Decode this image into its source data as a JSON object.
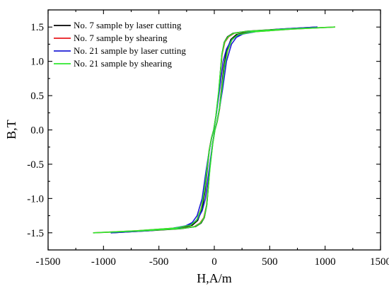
{
  "chart_data": {
    "type": "line",
    "title": "",
    "xlabel": "H,A/m",
    "ylabel": "B,T",
    "xlim": [
      -1500,
      1500
    ],
    "ylim": [
      -1.75,
      1.75
    ],
    "xticks": [
      -1500,
      -1000,
      -500,
      0,
      500,
      1000,
      1500
    ],
    "yticks": [
      -1.5,
      -1.0,
      -0.5,
      0.0,
      0.5,
      1.0,
      1.5
    ],
    "xtick_labels": [
      "-1500",
      "-1000",
      "-500",
      "0",
      "500",
      "1000",
      "1500"
    ],
    "ytick_labels": [
      "-1.5",
      "-1.0",
      "-0.5",
      "0.0",
      "0.5",
      "1.0",
      "1.5"
    ],
    "grid": false,
    "legend_position": "top-left",
    "series": [
      {
        "name": "No. 7 sample by laser cutting",
        "color": "#000000",
        "x": [
          930,
          600,
          300,
          200,
          150,
          110,
          85,
          65,
          45,
          25,
          5,
          -15,
          -40,
          -55,
          -68,
          -90,
          -120,
          -170,
          -300,
          -600,
          -930,
          -600,
          -300,
          -200,
          -150,
          -110,
          -85,
          -65,
          -45,
          -25,
          -5,
          15,
          40,
          55,
          68,
          90,
          120,
          170,
          300,
          600,
          930
        ],
        "y": [
          1.5,
          1.47,
          1.43,
          1.39,
          1.32,
          1.15,
          0.9,
          0.6,
          0.3,
          0.12,
          0.0,
          -0.2,
          -0.55,
          -0.85,
          -1.1,
          -1.28,
          -1.36,
          -1.41,
          -1.44,
          -1.47,
          -1.5,
          -1.47,
          -1.43,
          -1.39,
          -1.32,
          -1.15,
          -0.9,
          -0.6,
          -0.3,
          -0.12,
          0.0,
          0.2,
          0.55,
          0.85,
          1.1,
          1.28,
          1.36,
          1.41,
          1.44,
          1.47,
          1.5
        ]
      },
      {
        "name": "No. 7 sample by shearing",
        "color": "#e8191e",
        "x": [
          1090,
          700,
          350,
          220,
          160,
          120,
          90,
          68,
          47,
          26,
          6,
          -14,
          -40,
          -56,
          -70,
          -95,
          -130,
          -180,
          -320,
          -650,
          -1090,
          -700,
          -350,
          -220,
          -160,
          -120,
          -90,
          -68,
          -47,
          -26,
          -6,
          14,
          40,
          56,
          70,
          95,
          130,
          180,
          320,
          650,
          1090
        ],
        "y": [
          1.5,
          1.47,
          1.43,
          1.39,
          1.32,
          1.15,
          0.9,
          0.6,
          0.3,
          0.12,
          0.0,
          -0.2,
          -0.55,
          -0.85,
          -1.1,
          -1.28,
          -1.36,
          -1.41,
          -1.44,
          -1.47,
          -1.5,
          -1.47,
          -1.43,
          -1.39,
          -1.32,
          -1.15,
          -0.9,
          -0.6,
          -0.3,
          -0.12,
          0.0,
          0.2,
          0.55,
          0.85,
          1.1,
          1.28,
          1.36,
          1.41,
          1.44,
          1.47,
          1.5
        ]
      },
      {
        "name": "No. 21 sample by laser cutting",
        "color": "#1e1ed6",
        "x": [
          930,
          600,
          400,
          260,
          200,
          155,
          110,
          75,
          45,
          25,
          5,
          -15,
          -40,
          -60,
          -80,
          -110,
          -150,
          -200,
          -320,
          -600,
          -930,
          -600,
          -400,
          -260,
          -200,
          -155,
          -110,
          -75,
          -45,
          -25,
          -5,
          15,
          40,
          60,
          80,
          110,
          150,
          200,
          320,
          600,
          930
        ],
        "y": [
          1.5,
          1.47,
          1.44,
          1.4,
          1.35,
          1.25,
          1.0,
          0.6,
          0.3,
          0.12,
          0.0,
          -0.2,
          -0.5,
          -0.75,
          -1.0,
          -1.18,
          -1.3,
          -1.37,
          -1.43,
          -1.47,
          -1.5,
          -1.47,
          -1.44,
          -1.4,
          -1.35,
          -1.25,
          -1.0,
          -0.6,
          -0.3,
          -0.12,
          0.0,
          0.2,
          0.5,
          0.75,
          1.0,
          1.18,
          1.3,
          1.37,
          1.43,
          1.47,
          1.5
        ]
      },
      {
        "name": "No. 21 sample by shearing",
        "color": "#2ee82e",
        "x": [
          1090,
          700,
          350,
          215,
          160,
          118,
          90,
          68,
          46,
          25,
          6,
          -14,
          -38,
          -55,
          -68,
          -92,
          -125,
          -175,
          -310,
          -650,
          -1090,
          -700,
          -350,
          -215,
          -160,
          -118,
          -90,
          -68,
          -46,
          -25,
          -6,
          14,
          38,
          55,
          68,
          92,
          125,
          175,
          310,
          650,
          1090
        ],
        "y": [
          1.5,
          1.47,
          1.43,
          1.39,
          1.32,
          1.15,
          0.9,
          0.6,
          0.3,
          0.12,
          0.0,
          -0.2,
          -0.55,
          -0.85,
          -1.1,
          -1.28,
          -1.36,
          -1.41,
          -1.44,
          -1.47,
          -1.5,
          -1.47,
          -1.43,
          -1.39,
          -1.32,
          -1.15,
          -0.9,
          -0.6,
          -0.3,
          -0.12,
          0.0,
          0.2,
          0.55,
          0.85,
          1.1,
          1.28,
          1.36,
          1.41,
          1.44,
          1.47,
          1.5
        ]
      }
    ]
  }
}
